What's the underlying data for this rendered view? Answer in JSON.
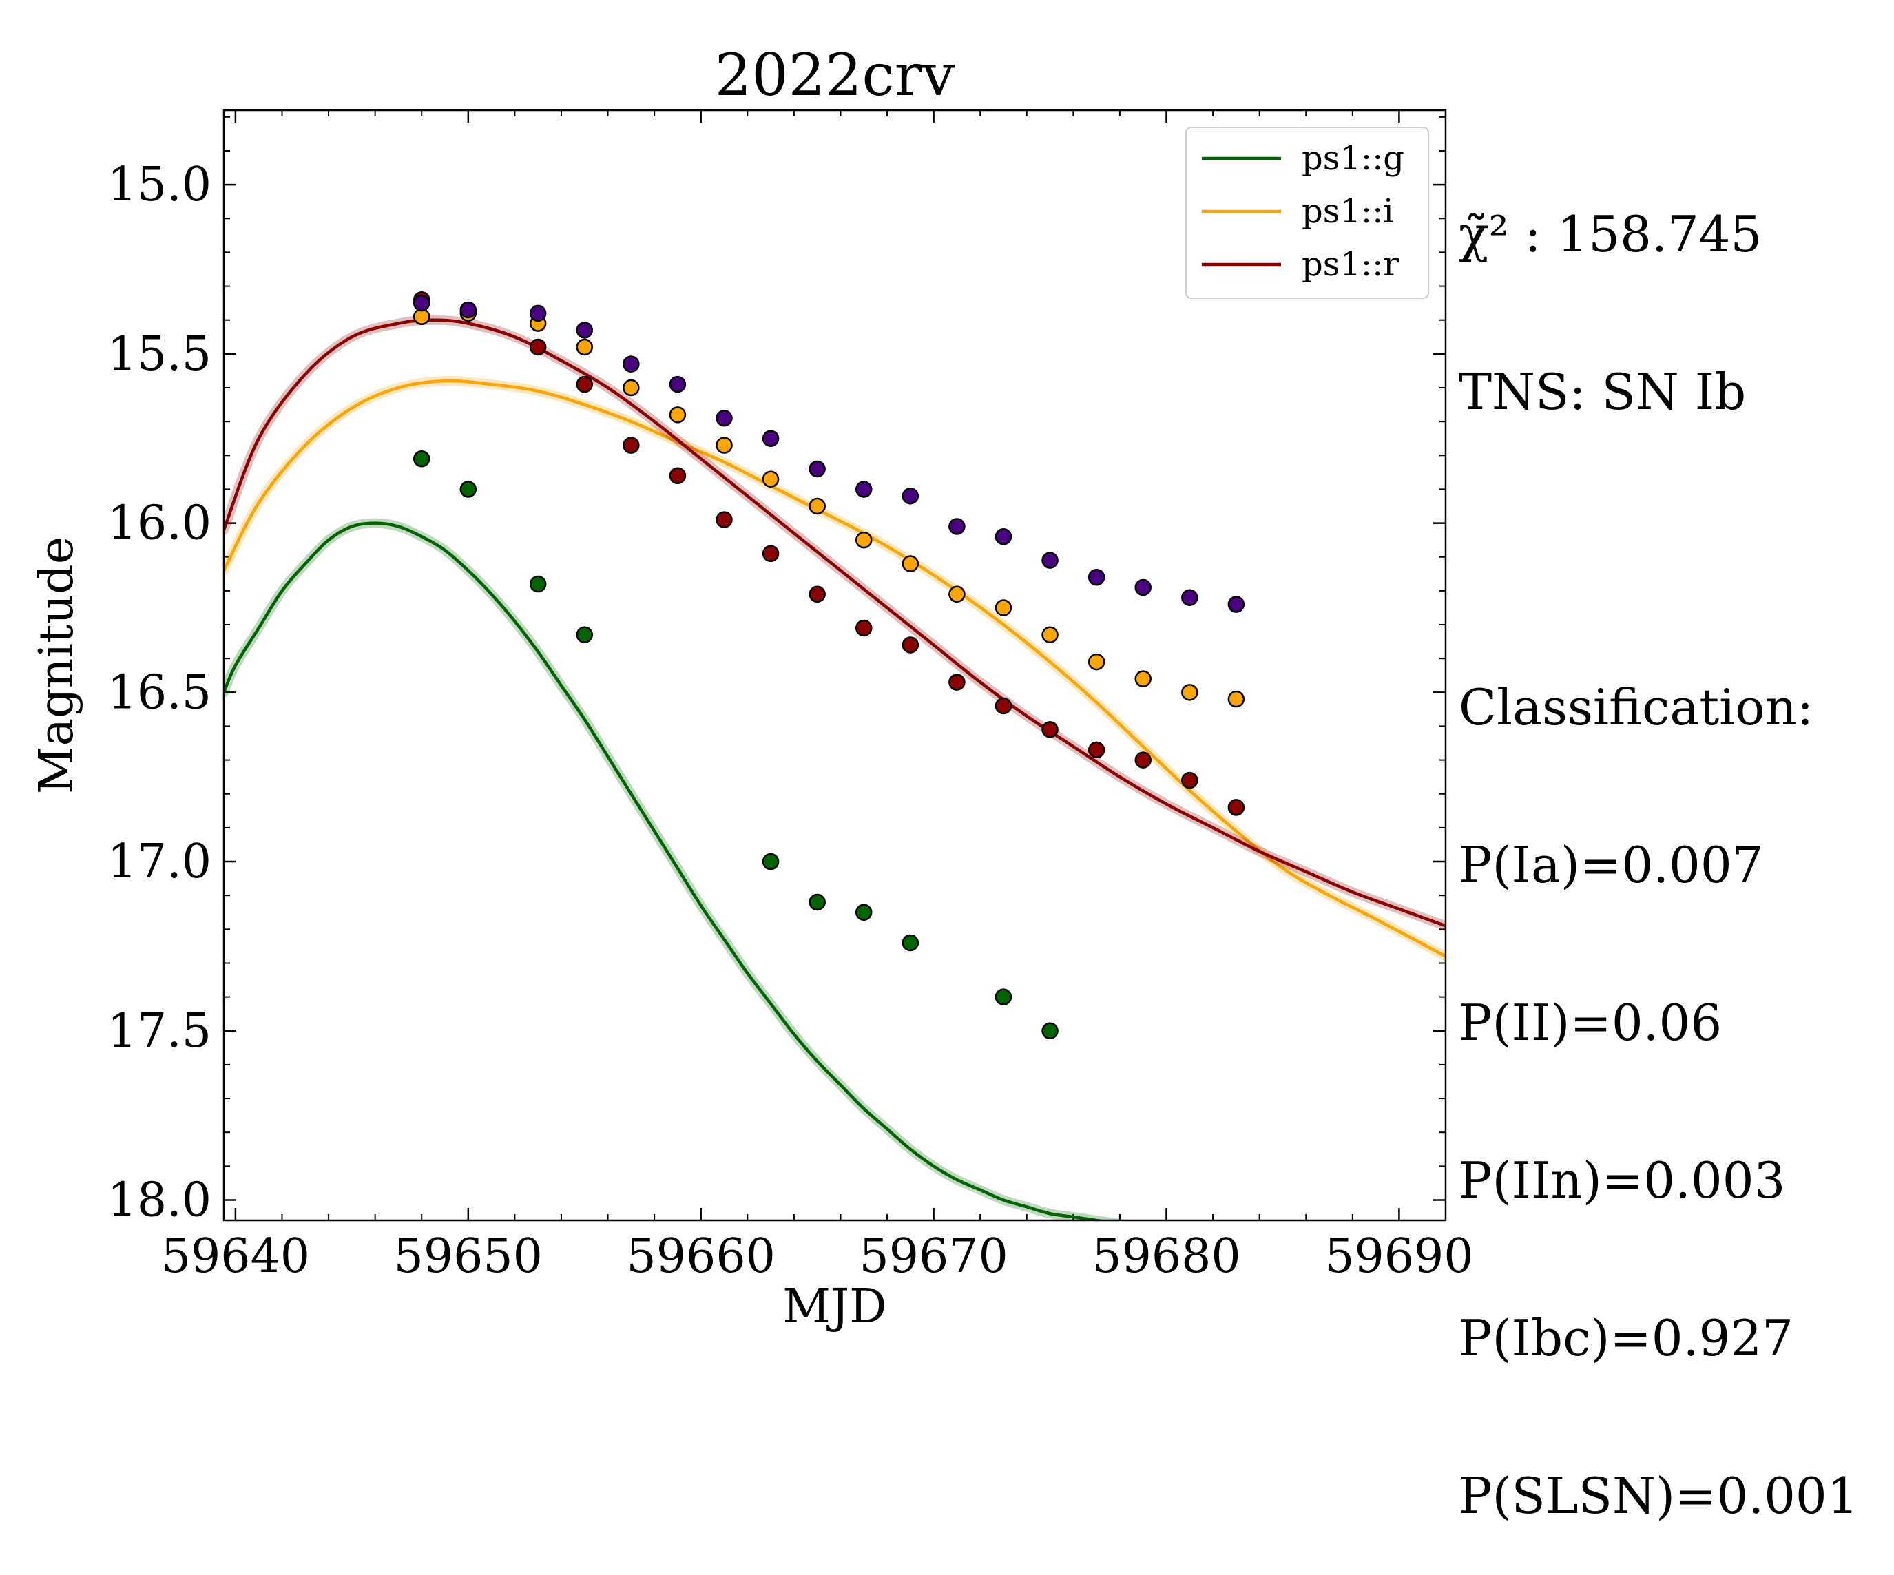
{
  "chart_data": {
    "type": "scatter",
    "title": "2022crv",
    "xlabel": "MJD",
    "ylabel": "Magnitude",
    "xlim": [
      59639.5,
      59692
    ],
    "ylim": [
      18.06,
      14.78
    ],
    "y_inverted": true,
    "xticks": [
      59640,
      59650,
      59660,
      59670,
      59680,
      59690
    ],
    "xtick_labels": [
      "59640",
      "59650",
      "59660",
      "59670",
      "59680",
      "59690"
    ],
    "yticks": [
      15.0,
      15.5,
      16.0,
      16.5,
      17.0,
      17.5,
      18.0
    ],
    "ytick_labels": [
      "15.0",
      "15.5",
      "16.0",
      "16.5",
      "17.0",
      "17.5",
      "18.0"
    ],
    "legend_position": "top-right",
    "legend": [
      {
        "label": "ps1::g",
        "color": "#006400"
      },
      {
        "label": "ps1::i",
        "color": "#FFA500"
      },
      {
        "label": "ps1::r",
        "color": "#8B0000"
      }
    ],
    "model_curves": [
      {
        "name": "ps1::g",
        "color": "#006400",
        "x": [
          59639.5,
          59640,
          59641,
          59642,
          59643,
          59644,
          59645,
          59646,
          59647,
          59648,
          59649,
          59650,
          59651,
          59652,
          59653,
          59654,
          59655,
          59656,
          59657,
          59658,
          59659,
          59660,
          59661,
          59662,
          59663,
          59664,
          59665,
          59666,
          59667,
          59668,
          59669,
          59670,
          59671,
          59672,
          59673,
          59674,
          59675,
          59676,
          59677,
          59678,
          59679,
          59680
        ],
        "y": [
          16.5,
          16.42,
          16.31,
          16.2,
          16.12,
          16.05,
          16.01,
          16.0,
          16.01,
          16.04,
          16.08,
          16.14,
          16.21,
          16.29,
          16.38,
          16.48,
          16.58,
          16.69,
          16.8,
          16.91,
          17.02,
          17.13,
          17.23,
          17.33,
          17.42,
          17.51,
          17.59,
          17.66,
          17.73,
          17.79,
          17.85,
          17.9,
          17.94,
          17.97,
          18.0,
          18.02,
          18.04,
          18.05,
          18.06,
          18.07,
          18.08,
          18.09
        ]
      },
      {
        "name": "ps1::i",
        "color": "#FFA500",
        "x": [
          59639.5,
          59641,
          59643,
          59645,
          59647,
          59649,
          59651,
          59653,
          59655,
          59657,
          59659,
          59661,
          59663,
          59665,
          59667,
          59669,
          59671,
          59673,
          59675,
          59677,
          59679,
          59681,
          59683,
          59685,
          59687,
          59689,
          59692
        ],
        "y": [
          16.14,
          15.94,
          15.77,
          15.66,
          15.6,
          15.58,
          15.59,
          15.61,
          15.65,
          15.7,
          15.76,
          15.82,
          15.89,
          15.96,
          16.03,
          16.11,
          16.2,
          16.3,
          16.41,
          16.53,
          16.66,
          16.79,
          16.91,
          17.02,
          17.1,
          17.17,
          17.28
        ]
      },
      {
        "name": "ps1::r",
        "color": "#8B0000",
        "x": [
          59639.5,
          59641,
          59643,
          59645,
          59647,
          59648.5,
          59650,
          59652,
          59654,
          59656,
          59658,
          59660,
          59662,
          59664,
          59666,
          59668,
          59670,
          59672,
          59674,
          59676,
          59678,
          59680,
          59682,
          59684,
          59686,
          59688,
          59690,
          59692
        ],
        "y": [
          16.02,
          15.75,
          15.56,
          15.45,
          15.41,
          15.4,
          15.41,
          15.45,
          15.52,
          15.6,
          15.7,
          15.81,
          15.92,
          16.03,
          16.14,
          16.25,
          16.36,
          16.47,
          16.57,
          16.66,
          16.75,
          16.83,
          16.9,
          16.97,
          17.03,
          17.09,
          17.14,
          17.19
        ]
      }
    ],
    "series": [
      {
        "name": "ps1::g",
        "color": "#006400",
        "x": [
          59648,
          59650,
          59653,
          59655,
          59663,
          59665,
          59667,
          59669,
          59673,
          59675
        ],
        "y": [
          15.81,
          15.9,
          16.18,
          16.33,
          17.0,
          17.12,
          17.15,
          17.24,
          17.4,
          17.5
        ]
      },
      {
        "name": "ps1::i",
        "color": "#FFA500",
        "x": [
          59648,
          59650,
          59653,
          59655,
          59657,
          59659,
          59661,
          59663,
          59665,
          59667,
          59669,
          59671,
          59673,
          59675,
          59677,
          59679,
          59681,
          59683
        ],
        "y": [
          15.39,
          15.38,
          15.41,
          15.48,
          15.6,
          15.68,
          15.77,
          15.87,
          15.95,
          16.05,
          16.12,
          16.21,
          16.25,
          16.33,
          16.41,
          16.46,
          16.5,
          16.52
        ]
      },
      {
        "name": "ps1::r",
        "color": "#8B0000",
        "x": [
          59648,
          59653,
          59655,
          59657,
          59659,
          59661,
          59663,
          59665,
          59667,
          59669,
          59671,
          59673,
          59675,
          59677,
          59679,
          59681,
          59683
        ],
        "y": [
          15.34,
          15.48,
          15.59,
          15.77,
          15.86,
          15.99,
          16.09,
          16.21,
          16.31,
          16.36,
          16.47,
          16.54,
          16.61,
          16.67,
          16.7,
          16.76,
          16.84
        ]
      },
      {
        "name": "purple",
        "color": "#4B0082",
        "x": [
          59648,
          59650,
          59653,
          59655,
          59657,
          59659,
          59661,
          59663,
          59665,
          59667,
          59669,
          59671,
          59673,
          59675,
          59677,
          59679,
          59681,
          59683
        ],
        "y": [
          15.35,
          15.37,
          15.38,
          15.43,
          15.53,
          15.59,
          15.69,
          15.75,
          15.84,
          15.9,
          15.92,
          16.01,
          16.04,
          16.11,
          16.16,
          16.19,
          16.22,
          16.24
        ]
      }
    ]
  },
  "sidebar": {
    "chi2_label": "χ̃² : 158.745",
    "tns": "TNS: SN Ib",
    "classification_heading": "Classification:",
    "probabilities": [
      "P(Ia)=0.007",
      "P(II)=0.06",
      "P(IIn)=0.003",
      "P(Ibc)=0.927",
      "P(SLSN)=0.001"
    ]
  }
}
